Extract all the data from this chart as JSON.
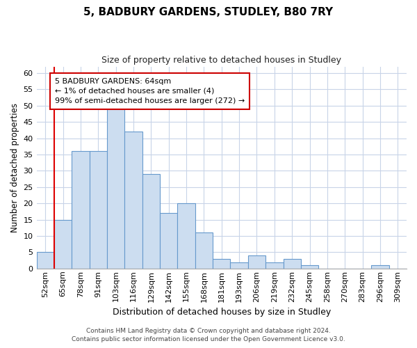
{
  "title": "5, BADBURY GARDENS, STUDLEY, B80 7RY",
  "subtitle": "Size of property relative to detached houses in Studley",
  "xlabel": "Distribution of detached houses by size in Studley",
  "ylabel": "Number of detached properties",
  "bar_labels": [
    "52sqm",
    "65sqm",
    "78sqm",
    "91sqm",
    "103sqm",
    "116sqm",
    "129sqm",
    "142sqm",
    "155sqm",
    "168sqm",
    "181sqm",
    "193sqm",
    "206sqm",
    "219sqm",
    "232sqm",
    "245sqm",
    "258sqm",
    "270sqm",
    "283sqm",
    "296sqm",
    "309sqm"
  ],
  "bar_values": [
    5,
    15,
    36,
    36,
    50,
    42,
    29,
    17,
    20,
    11,
    3,
    2,
    4,
    2,
    3,
    1,
    0,
    0,
    0,
    1,
    0
  ],
  "highlight_bar_index": 1,
  "bar_color": "#ccddf0",
  "bar_edge_color": "#6699cc",
  "highlight_edge_color": "#dd0000",
  "annotation_text": "5 BADBURY GARDENS: 64sqm\n← 1% of detached houses are smaller (4)\n99% of semi-detached houses are larger (272) →",
  "annotation_box_edge": "#cc0000",
  "ylim": [
    0,
    62
  ],
  "yticks": [
    0,
    5,
    10,
    15,
    20,
    25,
    30,
    35,
    40,
    45,
    50,
    55,
    60
  ],
  "footer1": "Contains HM Land Registry data © Crown copyright and database right 2024.",
  "footer2": "Contains public sector information licensed under the Open Government Licence v3.0.",
  "bg_color": "#ffffff",
  "grid_color": "#c8d4e8",
  "title_fontsize": 11,
  "subtitle_fontsize": 9,
  "ylabel_fontsize": 8.5,
  "xlabel_fontsize": 9,
  "tick_fontsize": 8,
  "annot_fontsize": 8,
  "footer_fontsize": 6.5
}
